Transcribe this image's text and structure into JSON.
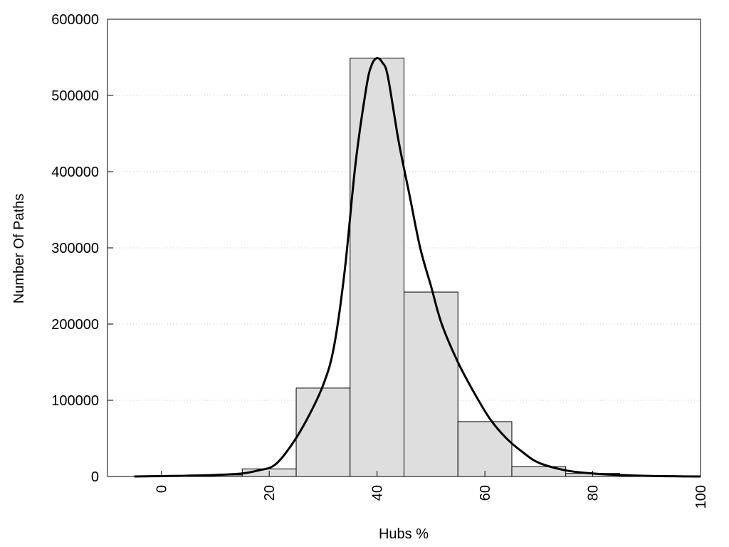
{
  "chart_data": {
    "type": "bar",
    "title": "",
    "xlabel": "Hubs %",
    "ylabel": "Number Of Paths",
    "xlim": [
      -10,
      100
    ],
    "ylim": [
      0,
      600000
    ],
    "grid": true,
    "x_ticks": [
      "0",
      "20",
      "40",
      "60",
      "80",
      "100"
    ],
    "y_ticks": [
      "0",
      "100000",
      "200000",
      "300000",
      "400000",
      "500000",
      "600000"
    ],
    "bin_width": 10,
    "bins": [
      {
        "center": 0,
        "value": 800
      },
      {
        "center": 10,
        "value": 2000
      },
      {
        "center": 20,
        "value": 10000
      },
      {
        "center": 30,
        "value": 116000
      },
      {
        "center": 40,
        "value": 549000
      },
      {
        "center": 50,
        "value": 242000
      },
      {
        "center": 60,
        "value": 72000
      },
      {
        "center": 70,
        "value": 13000
      },
      {
        "center": 80,
        "value": 4000
      },
      {
        "center": 90,
        "value": 1000
      }
    ],
    "fit_curve": {
      "x": [
        -5,
        0,
        5,
        10,
        15,
        18,
        21,
        24,
        27,
        30,
        32,
        34,
        36,
        38,
        39,
        40,
        41,
        42,
        44,
        46,
        48,
        50,
        52,
        55,
        58,
        61,
        64,
        67,
        70,
        75,
        80,
        85,
        90,
        95,
        100
      ],
      "y": [
        0,
        500,
        1000,
        2000,
        4000,
        8000,
        15000,
        40000,
        75000,
        120000,
        170000,
        270000,
        410000,
        510000,
        540000,
        549000,
        543000,
        525000,
        440000,
        370000,
        300000,
        250000,
        200000,
        150000,
        110000,
        75000,
        50000,
        32000,
        18000,
        8000,
        4000,
        2000,
        800,
        300,
        0
      ]
    }
  }
}
